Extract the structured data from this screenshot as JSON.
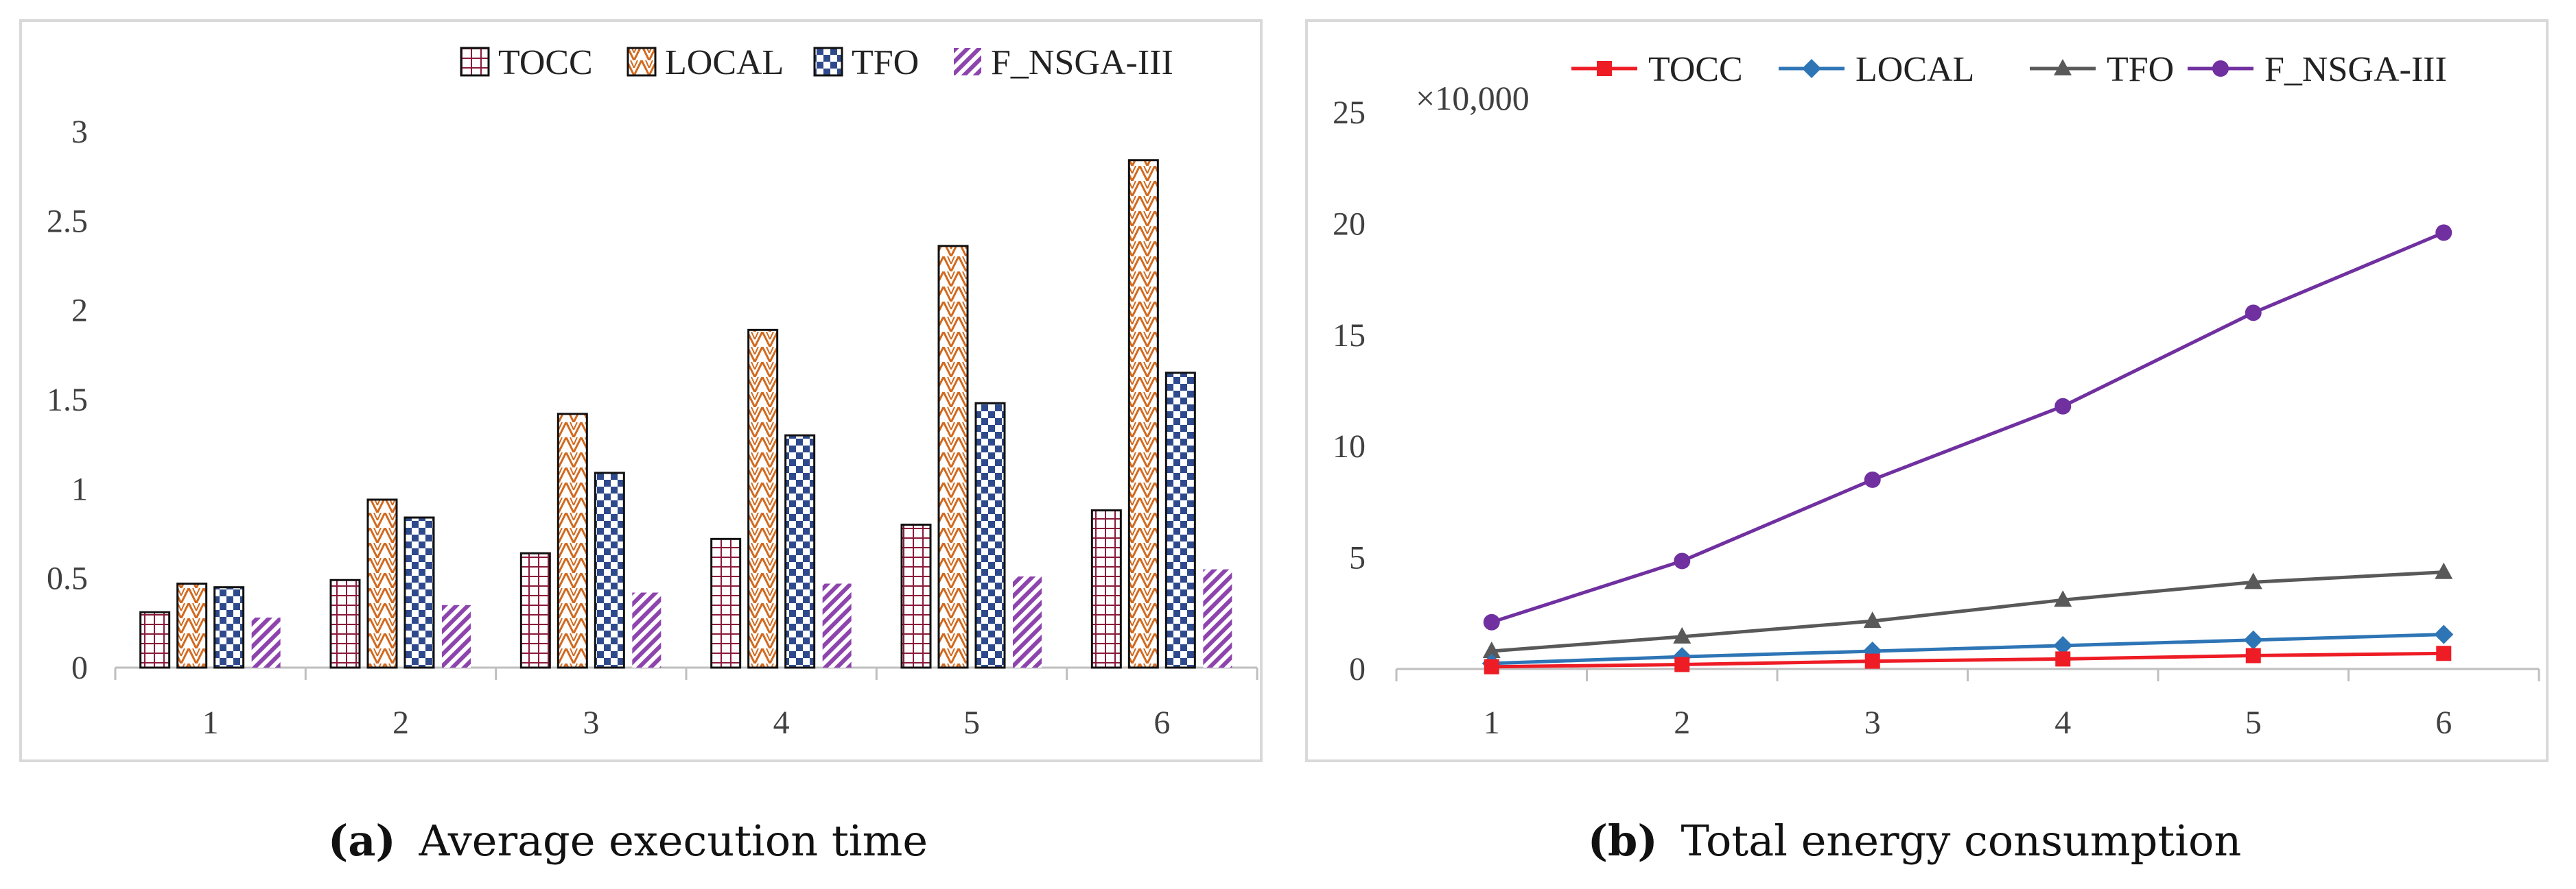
{
  "chart_data": [
    {
      "id": "a",
      "type": "bar",
      "title": "",
      "xlabel": "",
      "ylabel": "",
      "categories": [
        "1",
        "2",
        "3",
        "4",
        "5",
        "6"
      ],
      "ylim": [
        0,
        3
      ],
      "yticks": [
        "0",
        "0.5",
        "1",
        "1.5",
        "2",
        "2.5",
        "3"
      ],
      "ytick_values": [
        0,
        0.5,
        1,
        1.5,
        2,
        2.5,
        3
      ],
      "legend_position": "top-right",
      "series": [
        {
          "name": "TOCC",
          "values": [
            0.31,
            0.49,
            0.64,
            0.72,
            0.8,
            0.88
          ],
          "color": "#8b1a3a",
          "pattern": "grid"
        },
        {
          "name": "LOCAL",
          "values": [
            0.47,
            0.94,
            1.42,
            1.89,
            2.36,
            2.84
          ],
          "color": "#d2691e",
          "pattern": "zigzag"
        },
        {
          "name": "TFO",
          "values": [
            0.45,
            0.84,
            1.09,
            1.3,
            1.48,
            1.65
          ],
          "color": "#2e4a8c",
          "pattern": "checker"
        },
        {
          "name": "F_NSGA-III",
          "values": [
            0.28,
            0.35,
            0.42,
            0.47,
            0.51,
            0.55
          ],
          "color": "#8e44ad",
          "pattern": "diagonal"
        }
      ]
    },
    {
      "id": "b",
      "type": "line",
      "title": "",
      "xlabel": "",
      "ylabel": "",
      "multiplier_label": "×10,000",
      "x": [
        "1",
        "2",
        "3",
        "4",
        "5",
        "6"
      ],
      "ylim": [
        0,
        25
      ],
      "yticks": [
        "0",
        "5",
        "10",
        "15",
        "20",
        "25"
      ],
      "ytick_values": [
        0,
        5,
        10,
        15,
        20,
        25
      ],
      "legend_position": "top",
      "series": [
        {
          "name": "TOCC",
          "values": [
            0.1,
            0.2,
            0.35,
            0.45,
            0.6,
            0.7
          ],
          "color": "#ee1c25",
          "marker": "square"
        },
        {
          "name": "LOCAL",
          "values": [
            0.25,
            0.55,
            0.8,
            1.05,
            1.3,
            1.55
          ],
          "color": "#2e75b6",
          "marker": "diamond"
        },
        {
          "name": "TFO",
          "values": [
            0.8,
            1.45,
            2.15,
            3.1,
            3.9,
            4.35
          ],
          "color": "#595959",
          "marker": "triangle"
        },
        {
          "name": "F_NSGA-III",
          "values": [
            2.1,
            4.85,
            8.5,
            11.8,
            16.0,
            19.6
          ],
          "color": "#7030a0",
          "marker": "circle"
        }
      ]
    }
  ],
  "captions": {
    "a": {
      "label": "(a)",
      "text": "Average execution time"
    },
    "b": {
      "label": "(b)",
      "text": "Total energy consumption"
    }
  }
}
